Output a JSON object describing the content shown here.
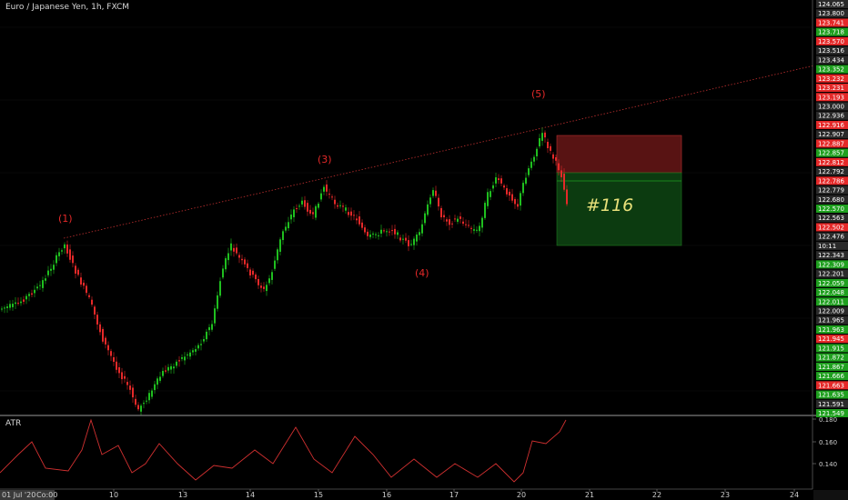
{
  "header": {
    "title": "Euro / Japanese Yen, 1h, FXCM"
  },
  "indicator": {
    "name": "ATR"
  },
  "colors": {
    "up": "#1fbf1f",
    "down": "#e52929",
    "background": "#000000",
    "axis": "#5a5a5a"
  },
  "chart_data": {
    "type": "candlestick",
    "x_ticks": [
      "10",
      "13",
      "14",
      "15",
      "16",
      "17",
      "20",
      "21",
      "22",
      "23",
      "24"
    ],
    "x_first_label": "01 Jul '20",
    "x_first_label_extra": "Co:00",
    "price_labels": [
      {
        "v": "124.065",
        "c": "#2a2a2a"
      },
      {
        "v": "123.800",
        "c": "#2a2a2a"
      },
      {
        "v": "123.741",
        "c": "#e52929"
      },
      {
        "v": "123.718",
        "c": "#1fa01f"
      },
      {
        "v": "123.570",
        "c": "#e52929"
      },
      {
        "v": "123.516",
        "c": "#2a2a2a"
      },
      {
        "v": "123.434",
        "c": "#2a2a2a"
      },
      {
        "v": "123.352",
        "c": "#1fa01f"
      },
      {
        "v": "123.232",
        "c": "#e52929"
      },
      {
        "v": "123.231",
        "c": "#e52929"
      },
      {
        "v": "123.193",
        "c": "#e52929"
      },
      {
        "v": "123.000",
        "c": "#2a2a2a"
      },
      {
        "v": "122.936",
        "c": "#2a2a2a"
      },
      {
        "v": "122.916",
        "c": "#e52929"
      },
      {
        "v": "122.907",
        "c": "#2a2a2a"
      },
      {
        "v": "122.887",
        "c": "#e52929"
      },
      {
        "v": "122.857",
        "c": "#1fa01f"
      },
      {
        "v": "122.812",
        "c": "#e52929"
      },
      {
        "v": "122.792",
        "c": "#2a2a2a"
      },
      {
        "v": "122.786",
        "c": "#e52929"
      },
      {
        "v": "122.779",
        "c": "#2a2a2a"
      },
      {
        "v": "122.680",
        "c": "#2a2a2a"
      },
      {
        "v": "122.570",
        "c": "#1fa01f"
      },
      {
        "v": "122.563",
        "c": "#2a2a2a"
      },
      {
        "v": "122.502",
        "c": "#e52929"
      },
      {
        "v": "122.476",
        "c": "#2a2a2a"
      },
      {
        "v": "10:11",
        "c": "#2a2a2a"
      },
      {
        "v": "122.343",
        "c": "#2a2a2a"
      },
      {
        "v": "122.309",
        "c": "#1fa01f"
      },
      {
        "v": "122.201",
        "c": "#2a2a2a"
      },
      {
        "v": "122.059",
        "c": "#1fa01f"
      },
      {
        "v": "122.048",
        "c": "#1fa01f"
      },
      {
        "v": "122.011",
        "c": "#1fa01f"
      },
      {
        "v": "122.009",
        "c": "#2a2a2a"
      },
      {
        "v": "121.965",
        "c": "#2a2a2a"
      },
      {
        "v": "121.963",
        "c": "#1fa01f"
      },
      {
        "v": "121.945",
        "c": "#e52929"
      },
      {
        "v": "121.915",
        "c": "#1fa01f"
      },
      {
        "v": "121.872",
        "c": "#1fa01f"
      },
      {
        "v": "121.867",
        "c": "#1fa01f"
      },
      {
        "v": "121.666",
        "c": "#1fa01f"
      },
      {
        "v": "121.663",
        "c": "#e52929"
      },
      {
        "v": "121.635",
        "c": "#1fa01f"
      },
      {
        "v": "121.591",
        "c": "#2a2a2a"
      },
      {
        "v": "121.549",
        "c": "#1fa01f"
      }
    ],
    "wave_labels": [
      "(1)",
      "(3)",
      "(4)",
      "(5)"
    ],
    "trade_label": "#116",
    "atr_ticks": [
      "0.180",
      "0.160",
      "0.140"
    ]
  }
}
